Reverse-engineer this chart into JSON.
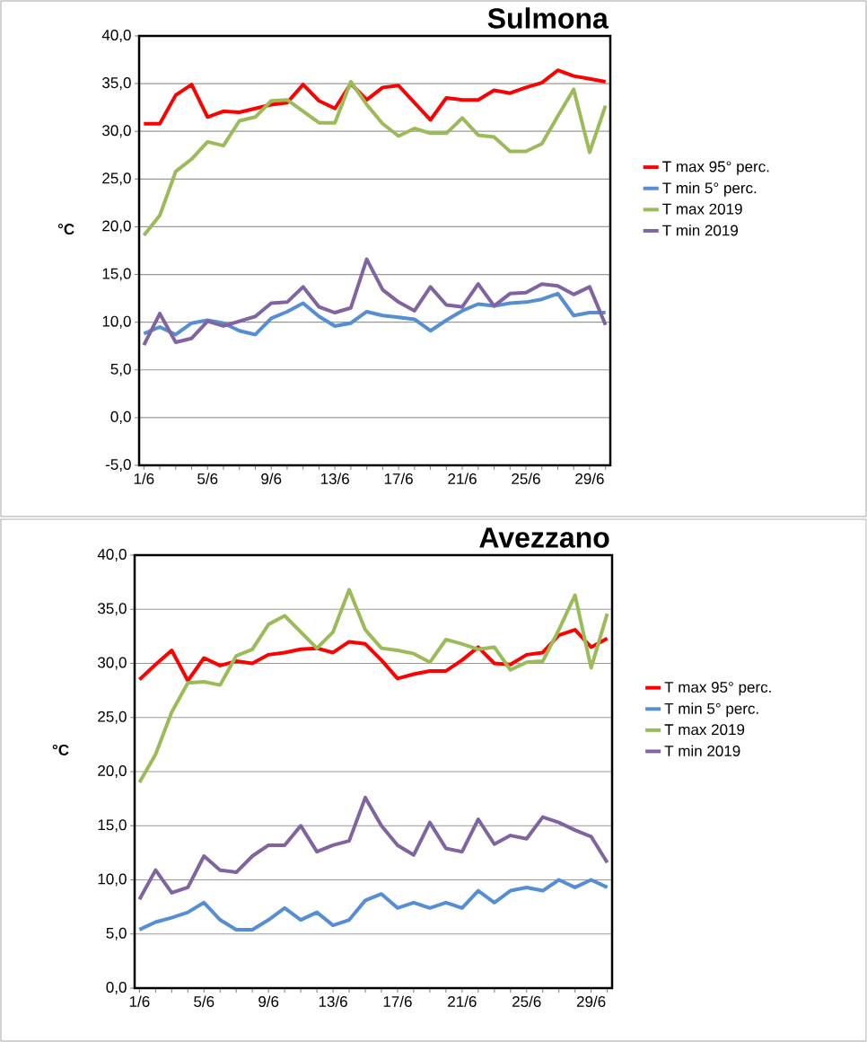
{
  "chart_data": [
    {
      "type": "line",
      "title": "Sulmona",
      "ylabel": "°C",
      "legend": "right",
      "grid": "y",
      "marker": "none",
      "line_style": "solid",
      "categories": [
        "1/6",
        null,
        null,
        null,
        "5/6",
        null,
        null,
        null,
        "9/6",
        null,
        null,
        null,
        "13/6",
        null,
        null,
        null,
        "17/6",
        null,
        null,
        null,
        "21/6",
        null,
        null,
        null,
        "25/6",
        null,
        null,
        null,
        "29/6",
        null
      ],
      "ylim": [
        -5,
        40
      ],
      "yticks": [
        {
          "value": -5,
          "label": "-5,0"
        },
        {
          "value": 0,
          "label": "0,0"
        },
        {
          "value": 5,
          "label": "5,0"
        },
        {
          "value": 10,
          "label": "10,0"
        },
        {
          "value": 15,
          "label": "15,0"
        },
        {
          "value": 20,
          "label": "20,0"
        },
        {
          "value": 25,
          "label": "25,0"
        },
        {
          "value": 30,
          "label": "30,0"
        },
        {
          "value": 35,
          "label": "35,0"
        },
        {
          "value": 40,
          "label": "40,0"
        }
      ],
      "series": [
        {
          "name": "T max 95° perc.",
          "color": "#ff0000",
          "values": [
            30.8,
            30.8,
            33.8,
            34.9,
            31.5,
            32.1,
            32.0,
            32.4,
            32.8,
            33.0,
            34.9,
            33.2,
            32.4,
            35.0,
            33.3,
            34.6,
            34.8,
            33.0,
            31.2,
            33.5,
            33.3,
            33.3,
            34.3,
            34.0,
            34.6,
            35.1,
            36.4,
            35.8,
            35.5,
            35.2
          ]
        },
        {
          "name": "T min 5° perc.",
          "color": "#558ed5",
          "values": [
            8.8,
            9.5,
            8.7,
            9.9,
            10.2,
            9.9,
            9.1,
            8.7,
            10.4,
            11.1,
            12.0,
            10.6,
            9.6,
            9.9,
            11.1,
            10.7,
            10.5,
            10.3,
            9.1,
            10.2,
            11.2,
            11.9,
            11.7,
            12.0,
            12.1,
            12.4,
            13.0,
            10.7,
            11.0,
            11.0
          ]
        },
        {
          "name": "T max 2019",
          "color": "#9bbb59",
          "values": [
            19.1,
            21.2,
            25.8,
            27.1,
            28.9,
            28.5,
            31.1,
            31.5,
            33.2,
            33.3,
            32.1,
            30.9,
            30.9,
            35.2,
            32.8,
            30.8,
            29.5,
            30.3,
            29.8,
            29.8,
            31.4,
            29.6,
            29.4,
            27.9,
            27.9,
            28.7,
            31.6,
            34.4,
            27.8,
            32.7
          ]
        },
        {
          "name": "T min 2019",
          "color": "#8064a2",
          "values": [
            7.6,
            10.9,
            7.9,
            8.3,
            10.1,
            9.6,
            10.1,
            10.6,
            12.0,
            12.1,
            13.7,
            11.6,
            11.0,
            11.5,
            16.6,
            13.4,
            12.1,
            11.2,
            13.7,
            11.8,
            11.6,
            14.0,
            11.7,
            13.0,
            13.1,
            14.0,
            13.8,
            12.9,
            13.7,
            9.7
          ]
        }
      ]
    },
    {
      "type": "line",
      "title": "Avezzano",
      "ylabel": "°C",
      "legend": "right",
      "grid": "y",
      "marker": "none",
      "line_style": "solid",
      "categories": [
        "1/6",
        null,
        null,
        null,
        "5/6",
        null,
        null,
        null,
        "9/6",
        null,
        null,
        null,
        "13/6",
        null,
        null,
        null,
        "17/6",
        null,
        null,
        null,
        "21/6",
        null,
        null,
        null,
        "25/6",
        null,
        null,
        null,
        "29/6",
        null
      ],
      "ylim": [
        0,
        40
      ],
      "yticks": [
        {
          "value": 0,
          "label": "0,0"
        },
        {
          "value": 5,
          "label": "5,0"
        },
        {
          "value": 10,
          "label": "10,0"
        },
        {
          "value": 15,
          "label": "15,0"
        },
        {
          "value": 20,
          "label": "20,0"
        },
        {
          "value": 25,
          "label": "25,0"
        },
        {
          "value": 30,
          "label": "30,0"
        },
        {
          "value": 35,
          "label": "35,0"
        },
        {
          "value": 40,
          "label": "40,0"
        }
      ],
      "series": [
        {
          "name": "T max 95° perc.",
          "color": "#ff0000",
          "values": [
            28.5,
            29.9,
            31.2,
            28.4,
            30.5,
            29.8,
            30.2,
            30.0,
            30.8,
            31.0,
            31.3,
            31.4,
            31.0,
            32.0,
            31.8,
            30.3,
            28.6,
            29.0,
            29.3,
            29.3,
            30.3,
            31.5,
            30.0,
            29.9,
            30.8,
            31.0,
            32.6,
            33.1,
            31.5,
            32.3
          ]
        },
        {
          "name": "T min 5° perc.",
          "color": "#558ed5",
          "values": [
            5.4,
            6.1,
            6.5,
            7.0,
            7.9,
            6.3,
            5.4,
            5.4,
            6.3,
            7.4,
            6.3,
            7.0,
            5.8,
            6.3,
            8.1,
            8.7,
            7.4,
            7.9,
            7.4,
            7.9,
            7.4,
            9.0,
            7.9,
            9.0,
            9.3,
            9.0,
            10.0,
            9.3,
            10.0,
            9.3
          ]
        },
        {
          "name": "T max 2019",
          "color": "#9bbb59",
          "values": [
            19.0,
            21.6,
            25.5,
            28.2,
            28.3,
            28.0,
            30.7,
            31.3,
            33.6,
            34.4,
            32.9,
            31.4,
            32.9,
            36.8,
            33.1,
            31.4,
            31.2,
            30.9,
            30.1,
            32.2,
            31.8,
            31.3,
            31.5,
            29.4,
            30.1,
            30.2,
            33.1,
            36.3,
            29.6,
            34.6
          ]
        },
        {
          "name": "T min 2019",
          "color": "#8064a2",
          "values": [
            8.2,
            10.9,
            8.8,
            9.3,
            12.2,
            10.9,
            10.7,
            12.2,
            13.2,
            13.2,
            15.0,
            12.6,
            13.2,
            13.6,
            17.6,
            15.0,
            13.2,
            12.3,
            15.3,
            12.9,
            12.6,
            15.6,
            13.3,
            14.1,
            13.8,
            15.8,
            15.3,
            14.6,
            14.0,
            11.6
          ]
        }
      ]
    }
  ]
}
